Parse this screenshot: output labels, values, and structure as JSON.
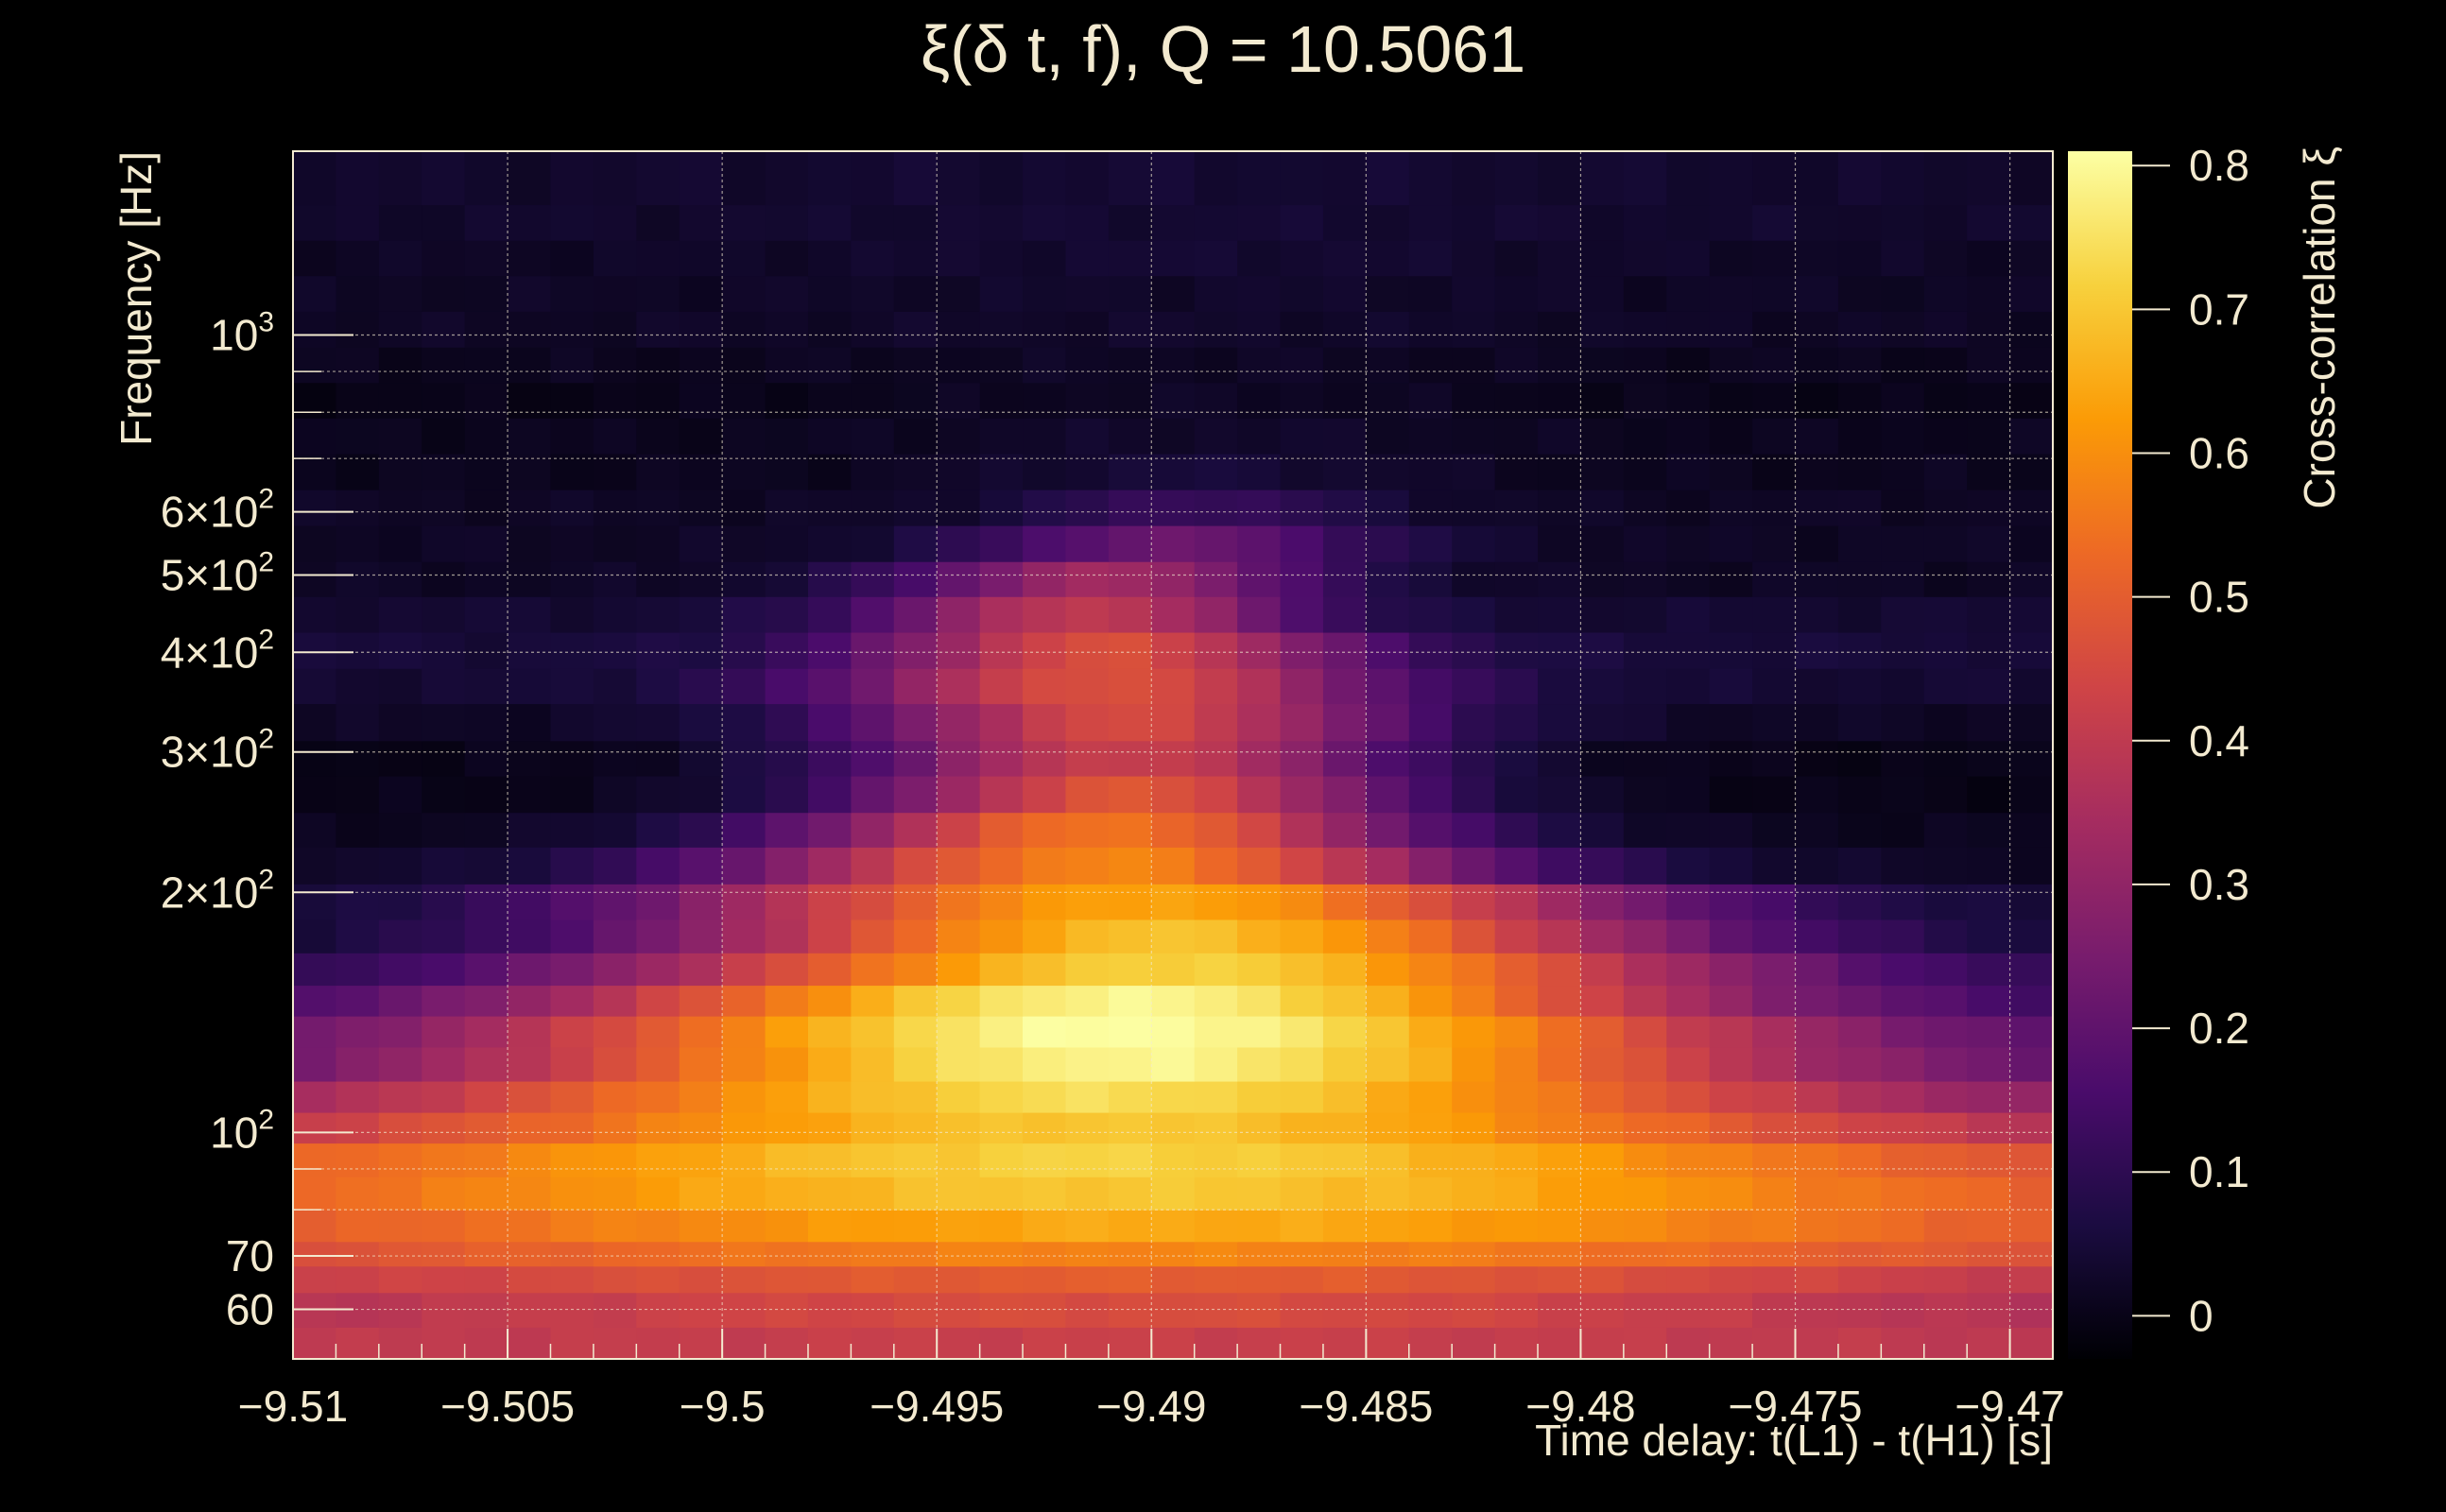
{
  "chart_data": {
    "type": "heatmap",
    "title": "ξ(δ t, f), Q = 10.5061",
    "xlabel": "Time delay: t(L1) - t(H1) [s]",
    "ylabel": "Frequency [Hz]",
    "colorbar_label": "Cross-correlation ξ",
    "xlim": [
      -9.51,
      -9.469
    ],
    "ylim": [
      52,
      1700
    ],
    "yscale": "log",
    "grid": true,
    "x_ticks": [
      {
        "value": -9.51,
        "label": "−9.51"
      },
      {
        "value": -9.505,
        "label": "−9.505"
      },
      {
        "value": -9.5,
        "label": "−9.5"
      },
      {
        "value": -9.495,
        "label": "−9.495"
      },
      {
        "value": -9.49,
        "label": "−9.49"
      },
      {
        "value": -9.485,
        "label": "−9.485"
      },
      {
        "value": -9.48,
        "label": "−9.48"
      },
      {
        "value": -9.475,
        "label": "−9.475"
      },
      {
        "value": -9.47,
        "label": "−9.47"
      }
    ],
    "y_ticks": [
      {
        "value": 60,
        "label": "60"
      },
      {
        "value": 70,
        "label": "70"
      },
      {
        "value": 100,
        "label": "10",
        "sup": "2"
      },
      {
        "value": 200,
        "label": "2×10",
        "sup": "2"
      },
      {
        "value": 300,
        "label": "3×10",
        "sup": "2"
      },
      {
        "value": 400,
        "label": "4×10",
        "sup": "2"
      },
      {
        "value": 500,
        "label": "5×10",
        "sup": "2"
      },
      {
        "value": 600,
        "label": "6×10",
        "sup": "2"
      },
      {
        "value": 1000,
        "label": "10",
        "sup": "3"
      }
    ],
    "y_minor_ticks": [
      80,
      90,
      700,
      800,
      900
    ],
    "colorbar_ticks": [
      {
        "value": 0,
        "label": "0"
      },
      {
        "value": 0.1,
        "label": "0.1"
      },
      {
        "value": 0.2,
        "label": "0.2"
      },
      {
        "value": 0.3,
        "label": "0.3"
      },
      {
        "value": 0.4,
        "label": "0.4"
      },
      {
        "value": 0.5,
        "label": "0.5"
      },
      {
        "value": 0.6,
        "label": "0.6"
      },
      {
        "value": 0.7,
        "label": "0.7"
      },
      {
        "value": 0.8,
        "label": "0.8"
      }
    ],
    "zlim": [
      -0.03,
      0.81
    ],
    "colormap": [
      "#000004",
      "#1b0c41",
      "#4a0c6b",
      "#781c6d",
      "#a52c60",
      "#cf4446",
      "#ed6925",
      "#fb9b06",
      "#f7d13d",
      "#fcffa4"
    ],
    "n_cols": 41,
    "bands": [
      {
        "f_lo": 52,
        "f_hi": 57,
        "peak": 0.42,
        "base": 0.39,
        "center": -9.4905,
        "width": 0.012
      },
      {
        "f_lo": 57,
        "f_hi": 63,
        "peak": 0.46,
        "base": 0.33,
        "center": -9.4905,
        "width": 0.014
      },
      {
        "f_lo": 63,
        "f_hi": 68,
        "peak": 0.5,
        "base": 0.34,
        "center": -9.4905,
        "width": 0.016
      },
      {
        "f_lo": 68,
        "f_hi": 73,
        "peak": 0.58,
        "base": 0.38,
        "center": -9.4895,
        "width": 0.016
      },
      {
        "f_lo": 73,
        "f_hi": 80,
        "peak": 0.65,
        "base": 0.4,
        "center": -9.4895,
        "width": 0.015
      },
      {
        "f_lo": 80,
        "f_hi": 88,
        "peak": 0.7,
        "base": 0.42,
        "center": -9.4905,
        "width": 0.014
      },
      {
        "f_lo": 88,
        "f_hi": 97,
        "peak": 0.72,
        "base": 0.4,
        "center": -9.491,
        "width": 0.013
      },
      {
        "f_lo": 97,
        "f_hi": 106,
        "peak": 0.7,
        "base": 0.3,
        "center": -9.491,
        "width": 0.012
      },
      {
        "f_lo": 106,
        "f_hi": 116,
        "peak": 0.74,
        "base": 0.22,
        "center": -9.491,
        "width": 0.011
      },
      {
        "f_lo": 116,
        "f_hi": 128,
        "peak": 0.79,
        "base": 0.15,
        "center": -9.4905,
        "width": 0.01
      },
      {
        "f_lo": 128,
        "f_hi": 140,
        "peak": 0.81,
        "base": 0.12,
        "center": -9.4905,
        "width": 0.01
      },
      {
        "f_lo": 140,
        "f_hi": 153,
        "peak": 0.79,
        "base": 0.1,
        "center": -9.4905,
        "width": 0.009
      },
      {
        "f_lo": 153,
        "f_hi": 168,
        "peak": 0.72,
        "base": 0.05,
        "center": -9.4895,
        "width": 0.009
      },
      {
        "f_lo": 168,
        "f_hi": 185,
        "peak": 0.69,
        "base": 0.03,
        "center": -9.4895,
        "width": 0.008
      },
      {
        "f_lo": 185,
        "f_hi": 205,
        "peak": 0.64,
        "base": 0.02,
        "center": -9.49,
        "width": 0.008
      },
      {
        "f_lo": 205,
        "f_hi": 228,
        "peak": 0.58,
        "base": 0.02,
        "center": -9.491,
        "width": 0.006
      },
      {
        "f_lo": 228,
        "f_hi": 252,
        "peak": 0.55,
        "base": 0.01,
        "center": -9.491,
        "width": 0.005
      },
      {
        "f_lo": 252,
        "f_hi": 280,
        "peak": 0.48,
        "base": 0.0,
        "center": -9.4905,
        "width": 0.0045
      },
      {
        "f_lo": 280,
        "f_hi": 310,
        "peak": 0.42,
        "base": 0.0,
        "center": -9.4905,
        "width": 0.0045
      },
      {
        "f_lo": 310,
        "f_hi": 345,
        "peak": 0.45,
        "base": 0.02,
        "center": -9.4905,
        "width": 0.0045
      },
      {
        "f_lo": 345,
        "f_hi": 382,
        "peak": 0.47,
        "base": 0.04,
        "center": -9.491,
        "width": 0.0045
      },
      {
        "f_lo": 382,
        "f_hi": 424,
        "peak": 0.46,
        "base": 0.05,
        "center": -9.491,
        "width": 0.004
      },
      {
        "f_lo": 424,
        "f_hi": 470,
        "peak": 0.4,
        "base": 0.04,
        "center": -9.4915,
        "width": 0.0035
      },
      {
        "f_lo": 470,
        "f_hi": 520,
        "peak": 0.33,
        "base": 0.02,
        "center": -9.491,
        "width": 0.0035
      },
      {
        "f_lo": 520,
        "f_hi": 577,
        "peak": 0.22,
        "base": 0.02,
        "center": -9.4895,
        "width": 0.0035
      },
      {
        "f_lo": 577,
        "f_hi": 640,
        "peak": 0.12,
        "base": 0.02,
        "center": -9.489,
        "width": 0.003
      },
      {
        "f_lo": 640,
        "f_hi": 710,
        "peak": 0.05,
        "base": 0.01,
        "center": -9.489,
        "width": 0.004
      },
      {
        "f_lo": 710,
        "f_hi": 787,
        "peak": 0.03,
        "base": 0.01,
        "center": -9.489,
        "width": 0.005
      },
      {
        "f_lo": 787,
        "f_hi": 872,
        "peak": 0.02,
        "base": 0.0,
        "center": -9.489,
        "width": 0.006
      },
      {
        "f_lo": 872,
        "f_hi": 966,
        "peak": 0.02,
        "base": 0.01,
        "center": -9.489,
        "width": 0.006
      },
      {
        "f_lo": 966,
        "f_hi": 1071,
        "peak": 0.03,
        "base": 0.02,
        "center": -9.489,
        "width": 0.007
      },
      {
        "f_lo": 1071,
        "f_hi": 1187,
        "peak": 0.03,
        "base": 0.02,
        "center": -9.489,
        "width": 0.007
      },
      {
        "f_lo": 1187,
        "f_hi": 1315,
        "peak": 0.04,
        "base": 0.02,
        "center": -9.489,
        "width": 0.007
      },
      {
        "f_lo": 1315,
        "f_hi": 1457,
        "peak": 0.04,
        "base": 0.03,
        "center": -9.489,
        "width": 0.008
      },
      {
        "f_lo": 1457,
        "f_hi": 1700,
        "peak": 0.04,
        "base": 0.03,
        "center": -9.489,
        "width": 0.008
      }
    ]
  }
}
